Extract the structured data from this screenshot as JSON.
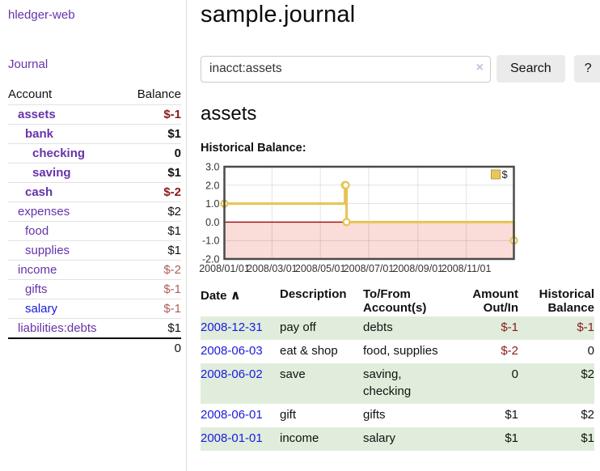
{
  "sidebar": {
    "brand": "hledger-web",
    "journal_link": "Journal",
    "accounts_table": {
      "headers": {
        "account": "Account",
        "balance": "Balance"
      },
      "rows": [
        {
          "name": "assets",
          "indent": 1,
          "bold": true,
          "balance": "$-1",
          "balance_color": "negative"
        },
        {
          "name": "bank",
          "indent": 2,
          "bold": true,
          "balance": "$1",
          "balance_color": "normal"
        },
        {
          "name": "checking",
          "indent": 3,
          "bold": true,
          "balance": "0",
          "balance_color": "normal"
        },
        {
          "name": "saving",
          "indent": 3,
          "bold": true,
          "balance": "$1",
          "balance_color": "normal"
        },
        {
          "name": "cash",
          "indent": 2,
          "bold": true,
          "balance": "$-2",
          "balance_color": "negative"
        },
        {
          "name": "expenses",
          "indent": 1,
          "bold": false,
          "balance": "$2",
          "balance_color": "normal"
        },
        {
          "name": "food",
          "indent": 2,
          "bold": false,
          "balance": "$1",
          "balance_color": "normal"
        },
        {
          "name": "supplies",
          "indent": 2,
          "bold": false,
          "balance": "$1",
          "balance_color": "normal"
        },
        {
          "name": "income",
          "indent": 1,
          "bold": false,
          "balance": "$-2",
          "balance_color": "soft-negative"
        },
        {
          "name": "gifts",
          "indent": 2,
          "bold": false,
          "balance": "$-1",
          "balance_color": "soft-negative"
        },
        {
          "name": "salary",
          "indent": 2,
          "bold": false,
          "balance": "$-1",
          "balance_color": "soft-negative",
          "link_color": "blue"
        },
        {
          "name": "liabilities:debts",
          "indent": 1,
          "bold": false,
          "balance": "$1",
          "balance_color": "normal"
        }
      ],
      "total": "0"
    }
  },
  "header": {
    "title": "sample.journal"
  },
  "search": {
    "query": "inacct:assets",
    "clear_icon": "×",
    "button_label": "Search",
    "help_label": "?"
  },
  "account_page": {
    "heading": "assets",
    "chart_title": "Historical Balance:"
  },
  "chart_data": {
    "type": "line",
    "step": true,
    "title": "Historical Balance",
    "series": [
      {
        "name": "$",
        "points": [
          [
            "2008-01-01",
            1
          ],
          [
            "2008-06-01",
            2
          ],
          [
            "2008-06-02",
            2
          ],
          [
            "2008-06-03",
            0
          ],
          [
            "2008-12-31",
            -1
          ]
        ]
      }
    ],
    "x_range": [
      "2008-01-01",
      "2008-12-31"
    ],
    "x_ticks": [
      "2008/01/01",
      "2008/03/01",
      "2008/05/01",
      "2008/07/01",
      "2008/09/01",
      "2008/11/01"
    ],
    "x_tick_dates": [
      "2008-01-01",
      "2008-03-01",
      "2008-05-01",
      "2008-07-01",
      "2008-09-01",
      "2008-11-01"
    ],
    "y_ticks": [
      3.0,
      2.0,
      1.0,
      0.0,
      -1.0,
      -2.0
    ],
    "ylim": [
      -2,
      3
    ],
    "grid": true,
    "legend_position": "top-right",
    "line_color": "#e7c452",
    "legend_fill": "#e9c75e",
    "legend_border": "#b89a3c",
    "negative_region_color": "#fadcd9",
    "zero_line_color": "#9c0606",
    "border_color": "#4a4a4a"
  },
  "register": {
    "columns": {
      "date": "Date",
      "sort_indicator": "∧",
      "description": "Description",
      "accounts": "To/From Account(s)",
      "amount": "Amount Out/In",
      "balance": "Historical Balance"
    },
    "rows": [
      {
        "date": "2008-12-31",
        "description": "pay off",
        "accounts": "debts",
        "amount": "$-1",
        "amount_negative": true,
        "balance": "$-1",
        "balance_negative": true,
        "highlighted": true
      },
      {
        "date": "2008-06-03",
        "description": "eat & shop",
        "accounts": "food, supplies",
        "amount": "$-2",
        "amount_negative": true,
        "balance": "0",
        "balance_negative": false,
        "highlighted": false
      },
      {
        "date": "2008-06-02",
        "description": "save",
        "accounts": "saving, checking",
        "amount": "0",
        "amount_negative": false,
        "balance": "$2",
        "balance_negative": false,
        "highlighted": true
      },
      {
        "date": "2008-06-01",
        "description": "gift",
        "accounts": "gifts",
        "amount": "$1",
        "amount_negative": false,
        "balance": "$2",
        "balance_negative": false,
        "highlighted": false
      },
      {
        "date": "2008-01-01",
        "description": "income",
        "accounts": "salary",
        "amount": "$1",
        "amount_negative": false,
        "balance": "$1",
        "balance_negative": false,
        "highlighted": true
      }
    ]
  }
}
